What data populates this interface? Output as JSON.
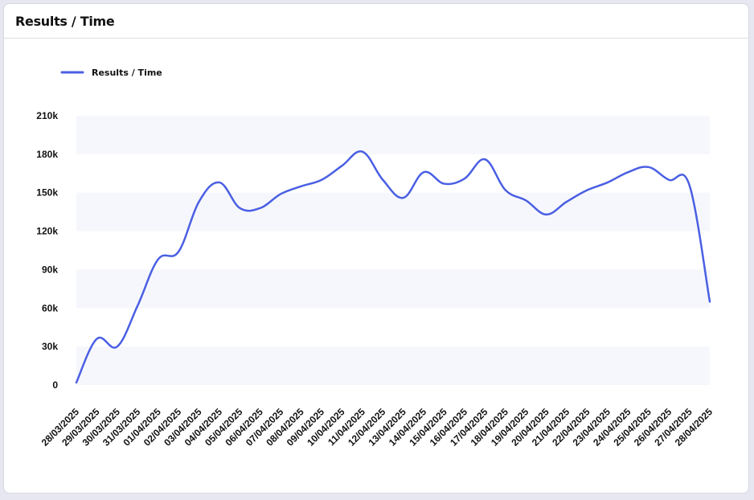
{
  "card": {
    "title": "Results / Time"
  },
  "colors": {
    "line": "#4a5fe3",
    "band": "#f6f7fc",
    "background": "#ffffff"
  },
  "chart_data": {
    "type": "line",
    "legend": "top-left",
    "grid": "alternating horizontal bands",
    "ylim": [
      0,
      210000
    ],
    "y_ticks": [
      {
        "value": 0,
        "label": "0"
      },
      {
        "value": 30000,
        "label": "30k"
      },
      {
        "value": 60000,
        "label": "60k"
      },
      {
        "value": 90000,
        "label": "90k"
      },
      {
        "value": 120000,
        "label": "120k"
      },
      {
        "value": 150000,
        "label": "150k"
      },
      {
        "value": 180000,
        "label": "180k"
      },
      {
        "value": 210000,
        "label": "210k"
      }
    ],
    "x": [
      "28/03/2025",
      "29/03/2025",
      "30/03/2025",
      "31/03/2025",
      "01/04/2025",
      "02/04/2025",
      "03/04/2025",
      "04/04/2025",
      "05/04/2025",
      "06/04/2025",
      "07/04/2025",
      "08/04/2025",
      "09/04/2025",
      "10/04/2025",
      "11/04/2025",
      "12/04/2025",
      "13/04/2025",
      "14/04/2025",
      "15/04/2025",
      "16/04/2025",
      "17/04/2025",
      "18/04/2025",
      "19/04/2025",
      "20/04/2025",
      "21/04/2025",
      "22/04/2025",
      "23/04/2025",
      "24/04/2025",
      "25/04/2025",
      "26/04/2025",
      "27/04/2025",
      "28/04/2025"
    ],
    "series": [
      {
        "name": "Results / Time",
        "values": [
          2000,
          36000,
          30000,
          62000,
          98000,
          104000,
          143000,
          158000,
          138000,
          138000,
          149000,
          155000,
          160000,
          171000,
          182000,
          160000,
          146000,
          166000,
          157000,
          161000,
          176000,
          152000,
          144000,
          133000,
          143000,
          152000,
          158000,
          166000,
          170000,
          160000,
          156000,
          65000
        ]
      }
    ]
  }
}
